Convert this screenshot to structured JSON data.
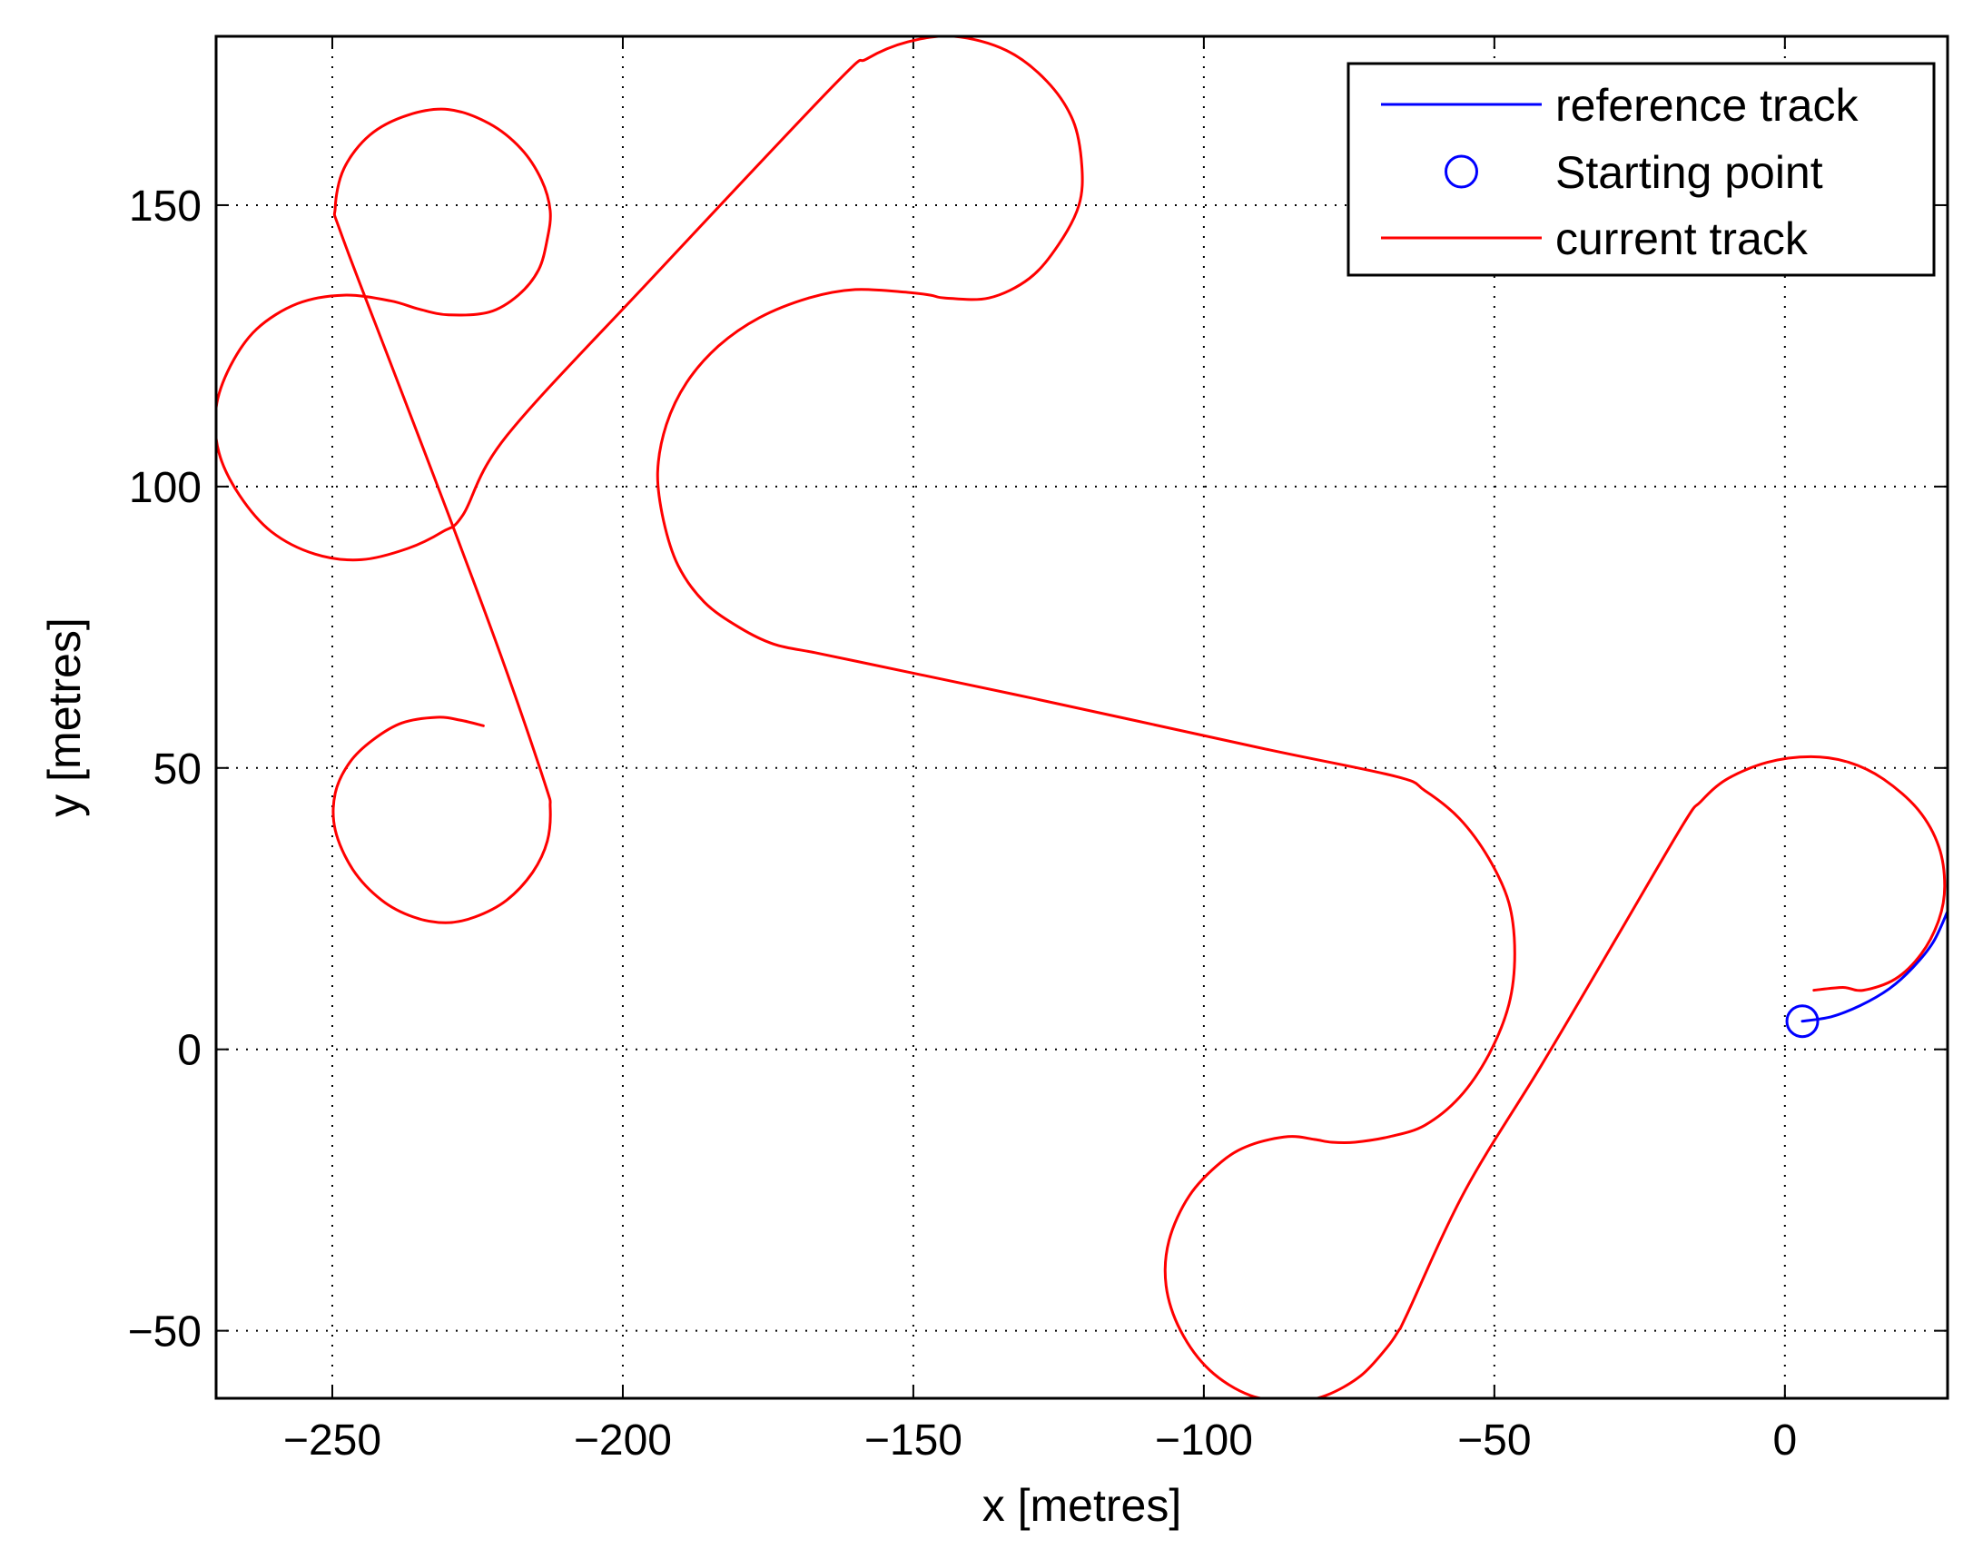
{
  "chart_data": {
    "type": "line",
    "title": "",
    "xlabel": "x [metres]",
    "ylabel": "y [metres]",
    "xlim": [
      -270,
      28
    ],
    "ylim": [
      -62,
      180
    ],
    "xticks": [
      -250,
      -200,
      -150,
      -100,
      -50,
      0
    ],
    "yticks": [
      -50,
      0,
      50,
      100,
      150
    ],
    "xtick_labels": [
      "−250",
      "−200",
      "−150",
      "−100",
      "−50",
      "0"
    ],
    "ytick_labels": [
      "−50",
      "0",
      "50",
      "100",
      "150"
    ],
    "grid": true,
    "legend_position": "top-right",
    "colors": {
      "reference": "#0000ff",
      "current": "#ff0000",
      "start": "#0000ff"
    },
    "legend": [
      {
        "label": "reference track",
        "marker": "line",
        "color": "#0000ff"
      },
      {
        "label": "Starting point",
        "marker": "circle",
        "color": "#0000ff"
      },
      {
        "label": "current track",
        "marker": "line",
        "color": "#ff0000"
      }
    ],
    "series": [
      {
        "name": "reference track",
        "color": "#0000ff",
        "points": [
          [
            3,
            5
          ],
          [
            8,
            5.8
          ],
          [
            13,
            7.8
          ],
          [
            18,
            10.8
          ],
          [
            22,
            14.5
          ],
          [
            25.5,
            19
          ],
          [
            28,
            24.5
          ]
        ]
      },
      {
        "name": "Starting point",
        "color": "#0000ff",
        "points": [
          [
            3,
            5
          ]
        ]
      },
      {
        "name": "current track",
        "color": "#ff0000",
        "points": [
          [
            5,
            10.5
          ],
          [
            10,
            11
          ],
          [
            13.5,
            10.5
          ],
          [
            19,
            12.5
          ],
          [
            23.5,
            17
          ],
          [
            26.5,
            23
          ],
          [
            27.5,
            29
          ],
          [
            26.5,
            36
          ],
          [
            23,
            42.5
          ],
          [
            17,
            48
          ],
          [
            11,
            51
          ],
          [
            4.5,
            52
          ],
          [
            -3,
            51
          ],
          [
            -10,
            48
          ],
          [
            -14.5,
            44
          ],
          [
            -17.5,
            40
          ],
          [
            -30,
            18
          ],
          [
            -42,
            -3
          ],
          [
            -55,
            -25
          ],
          [
            -65,
            -47
          ],
          [
            -66.5,
            -50
          ],
          [
            -68.5,
            -53
          ],
          [
            -73,
            -58
          ],
          [
            -79,
            -61.5
          ],
          [
            -84.5,
            -62.5
          ],
          [
            -92,
            -61.5
          ],
          [
            -99,
            -57
          ],
          [
            -104,
            -50
          ],
          [
            -106.5,
            -42
          ],
          [
            -106,
            -34
          ],
          [
            -102.5,
            -26
          ],
          [
            -97,
            -20
          ],
          [
            -92,
            -17
          ],
          [
            -85.5,
            -15.5
          ],
          [
            -81,
            -16
          ],
          [
            -78,
            -16.5
          ],
          [
            -74,
            -16.5
          ],
          [
            -68,
            -15.5
          ],
          [
            -62,
            -13.5
          ],
          [
            -56,
            -8.5
          ],
          [
            -51,
            -1
          ],
          [
            -47.5,
            8
          ],
          [
            -46.5,
            17
          ],
          [
            -47.5,
            26
          ],
          [
            -51,
            34
          ],
          [
            -56,
            41
          ],
          [
            -62,
            46
          ],
          [
            -67,
            48.5
          ],
          [
            -90,
            53.5
          ],
          [
            -130,
            62.5
          ],
          [
            -160,
            69
          ],
          [
            -167,
            70.5
          ],
          [
            -174,
            72
          ],
          [
            -180,
            75
          ],
          [
            -186,
            79.5
          ],
          [
            -190.5,
            86
          ],
          [
            -193,
            94
          ],
          [
            -194,
            102.5
          ],
          [
            -192.5,
            111
          ],
          [
            -189,
            118.5
          ],
          [
            -183.5,
            125
          ],
          [
            -176.5,
            130
          ],
          [
            -168,
            133.5
          ],
          [
            -160,
            135
          ],
          [
            -151,
            134.5
          ],
          [
            -147,
            134
          ],
          [
            -144.5,
            133.5
          ],
          [
            -137,
            133.5
          ],
          [
            -130,
            137
          ],
          [
            -125,
            143
          ],
          [
            -121.5,
            150
          ],
          [
            -121,
            157
          ],
          [
            -122.5,
            165
          ],
          [
            -127,
            172
          ],
          [
            -134,
            177.5
          ],
          [
            -143,
            180
          ],
          [
            -151,
            179
          ],
          [
            -158,
            176
          ],
          [
            -163.5,
            171.5
          ],
          [
            -195,
            137
          ],
          [
            -220,
            109
          ],
          [
            -227.5,
            95
          ],
          [
            -231,
            92
          ],
          [
            -237,
            89
          ],
          [
            -245,
            87
          ],
          [
            -253,
            88
          ],
          [
            -260.5,
            92
          ],
          [
            -266,
            98.5
          ],
          [
            -269.5,
            106
          ],
          [
            -270,
            114
          ],
          [
            -267.5,
            121.5
          ],
          [
            -263,
            128
          ],
          [
            -256,
            132.5
          ],
          [
            -248,
            134
          ],
          [
            -240,
            133
          ],
          [
            -235,
            131.5
          ],
          [
            -230,
            130.5
          ],
          [
            -223,
            131
          ],
          [
            -218,
            134
          ],
          [
            -214.5,
            138.5
          ],
          [
            -213,
            144
          ],
          [
            -212.5,
            149
          ],
          [
            -214,
            154.5
          ],
          [
            -217.5,
            160
          ],
          [
            -223,
            164.5
          ],
          [
            -230,
            167
          ],
          [
            -237,
            166
          ],
          [
            -243.5,
            162.5
          ],
          [
            -248,
            156.5
          ],
          [
            -249.5,
            149.5
          ],
          [
            -248.5,
            145
          ],
          [
            -240,
            122
          ],
          [
            -230,
            95
          ],
          [
            -221,
            70
          ],
          [
            -213.5,
            47.5
          ],
          [
            -212.5,
            43
          ],
          [
            -213,
            37
          ],
          [
            -215.5,
            31.5
          ],
          [
            -220,
            26.5
          ],
          [
            -225.5,
            23.5
          ],
          [
            -230.5,
            22.5
          ],
          [
            -236,
            23.5
          ],
          [
            -241.5,
            26.5
          ],
          [
            -246.5,
            32
          ],
          [
            -249.5,
            39
          ],
          [
            -249.5,
            45.5
          ],
          [
            -247,
            51
          ],
          [
            -243,
            55
          ],
          [
            -238,
            58
          ],
          [
            -232,
            59
          ],
          [
            -228,
            58.5
          ],
          [
            -224,
            57.5
          ]
        ]
      }
    ]
  }
}
